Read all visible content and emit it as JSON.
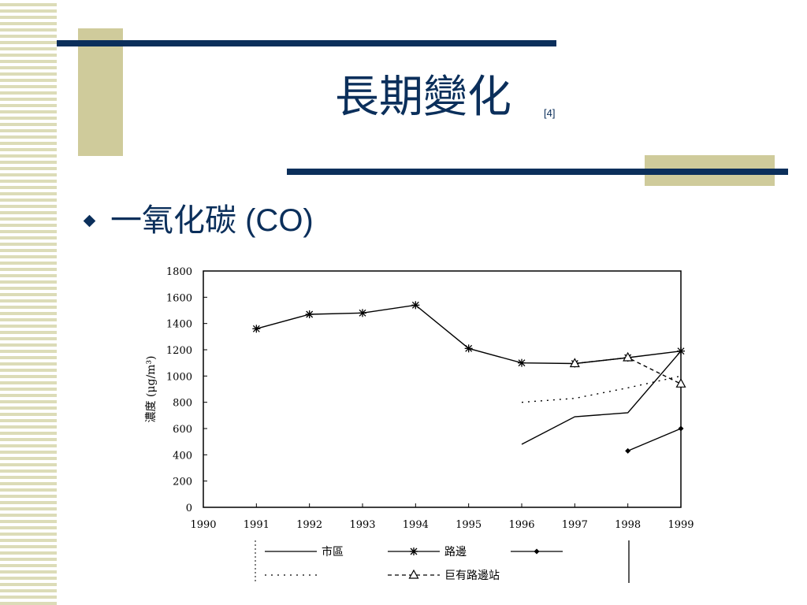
{
  "slide": {
    "title": "長期變化",
    "title_ref": "[4]",
    "bullet": "一氧化碳 (CO)"
  },
  "colors": {
    "accent_navy": "#0b2f5b",
    "accent_tan": "#cfcb9b"
  },
  "chart_data": {
    "type": "line",
    "xlabel": "",
    "ylabel": "濃度 (μg/m³)",
    "xlim": [
      1990,
      1999
    ],
    "ylim": [
      0,
      1800
    ],
    "x_ticks": [
      "1990",
      "1991",
      "1992",
      "1993",
      "1994",
      "1995",
      "1996",
      "1997",
      "1998",
      "1999"
    ],
    "y_ticks": [
      "0",
      "200",
      "400",
      "600",
      "800",
      "1000",
      "1200",
      "1400",
      "1600",
      "1800"
    ],
    "legend_position": "bottom",
    "series": [
      {
        "name": "市區",
        "marker": "none",
        "style": "solid",
        "x": [
          1996,
          1997,
          1998,
          1999
        ],
        "values": [
          480,
          690,
          720,
          1190
        ]
      },
      {
        "name": "路邊",
        "marker": "asterisk",
        "style": "solid",
        "x": [
          1991,
          1992,
          1993,
          1994,
          1995,
          1996,
          1997,
          1998,
          1999
        ],
        "values": [
          1360,
          1470,
          1480,
          1540,
          1210,
          1100,
          1095,
          1140,
          1190
        ]
      },
      {
        "name": "",
        "marker": "diamond",
        "style": "solid",
        "x": [
          1998,
          1999
        ],
        "values": [
          430,
          600
        ]
      },
      {
        "name": "",
        "marker": "none",
        "style": "dotted",
        "x": [
          1996,
          1997,
          1998,
          1999
        ],
        "values": [
          800,
          830,
          910,
          1000
        ]
      },
      {
        "name": "巨有路邊站",
        "marker": "triangle",
        "style": "dashed",
        "x": [
          1997,
          1998,
          1999
        ],
        "values": [
          1095,
          1140,
          940
        ]
      }
    ]
  }
}
